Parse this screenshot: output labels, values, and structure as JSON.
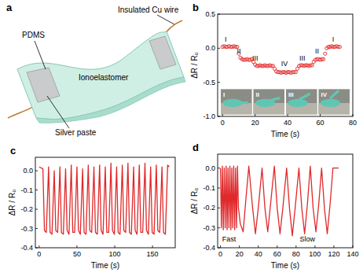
{
  "diagram": {
    "label": "a",
    "parts": {
      "pdms": "PDMS",
      "wire": "Insulated Cu wire",
      "body": "Ionoelastomer",
      "paste": "Silver paste"
    }
  },
  "chart_data": [
    {
      "type": "line",
      "title": "b",
      "x_label": "Time (s)",
      "y_label": "ΔR / R₀",
      "color": "#e0292b",
      "marker": "circle",
      "line_style": "none",
      "grid": false,
      "xlim": [
        -3,
        80
      ],
      "xticks": [
        0,
        20,
        40,
        60,
        80
      ],
      "ylim": [
        -1,
        0.5
      ],
      "yticks": [
        {
          "value": -1,
          "label": "-1.0"
        },
        -0.5,
        {
          "value": 0,
          "label": "0.0"
        },
        0.5
      ],
      "x": [
        0,
        1,
        2,
        3,
        4,
        5,
        6,
        7,
        8,
        9,
        10,
        11,
        12,
        13,
        14,
        15,
        16,
        17,
        18,
        19,
        20,
        21,
        22,
        23,
        24,
        25,
        26,
        27,
        28,
        29,
        30,
        31,
        32,
        33,
        34,
        35,
        36,
        37,
        38,
        39,
        40,
        41,
        42,
        43,
        44,
        45,
        46,
        47,
        48,
        49,
        50,
        51,
        52,
        53,
        54,
        55,
        56,
        57,
        58,
        59,
        60,
        61,
        62,
        63,
        64,
        65,
        66,
        67,
        68,
        69,
        70,
        71,
        72
      ],
      "values": [
        0.02,
        0.03,
        0.02,
        0.02,
        0.03,
        0.02,
        0.02,
        0.03,
        0.02,
        0.02,
        -0.08,
        -0.14,
        -0.16,
        -0.17,
        -0.17,
        -0.16,
        -0.17,
        -0.17,
        -0.16,
        -0.2,
        -0.24,
        -0.26,
        -0.26,
        -0.25,
        -0.26,
        -0.26,
        -0.25,
        -0.26,
        -0.26,
        -0.25,
        -0.26,
        -0.26,
        -0.3,
        -0.34,
        -0.35,
        -0.35,
        -0.36,
        -0.35,
        -0.35,
        -0.36,
        -0.35,
        -0.35,
        -0.36,
        -0.35,
        -0.35,
        -0.35,
        -0.3,
        -0.26,
        -0.25,
        -0.25,
        -0.26,
        -0.25,
        -0.25,
        -0.26,
        -0.25,
        -0.25,
        -0.2,
        -0.17,
        -0.16,
        -0.16,
        -0.17,
        -0.16,
        -0.16,
        -0.08,
        0.0,
        0.02,
        0.02,
        0.03,
        0.02,
        0.02,
        0.03,
        0.02,
        0.02
      ],
      "annotations": [
        {
          "text": "I",
          "x": 2,
          "y": 0.1
        },
        {
          "text": "II",
          "x": 10,
          "y": -0.08
        },
        {
          "text": "III",
          "x": 20,
          "y": -0.18
        },
        {
          "text": "IV",
          "x": 38,
          "y": -0.26
        },
        {
          "text": "III",
          "x": 49,
          "y": -0.18
        },
        {
          "text": "II",
          "x": 58,
          "y": -0.08
        },
        {
          "text": "I",
          "x": 68,
          "y": 0.1
        }
      ],
      "insets": [
        "I",
        "II",
        "III",
        "IV"
      ]
    },
    {
      "type": "line",
      "title": "c",
      "x_label": "Time (s)",
      "y_label": "ΔR / R₀",
      "color": "#e0292b",
      "marker": "none",
      "line_style": "solid",
      "grid": false,
      "xlim": [
        -5,
        180
      ],
      "xticks": [
        0,
        50,
        100,
        150
      ],
      "ylim": [
        -0.4,
        0.07
      ],
      "yticks": [
        -0.4,
        -0.3,
        -0.2,
        -0.1,
        {
          "value": 0,
          "label": "0.0"
        }
      ],
      "x": [
        0,
        5,
        7,
        9.5,
        12.5,
        14.5,
        17,
        20,
        22,
        24.5,
        27.5,
        29.5,
        32,
        35,
        37,
        39.5,
        42.5,
        44.5,
        47,
        50,
        52,
        54.5,
        57.5,
        59.5,
        62,
        65,
        67,
        69.5,
        72.5,
        74.5,
        77,
        80,
        82,
        84.5,
        87.5,
        89.5,
        92,
        95,
        97,
        99.5,
        102.5,
        104.5,
        107,
        110,
        112,
        114.5,
        117.5,
        119.5,
        122,
        125,
        127,
        129.5,
        132.5,
        134.5,
        137,
        140,
        142,
        144.5,
        147.5,
        149.5,
        152,
        155,
        157,
        159.5,
        162.5,
        164.5,
        167,
        170,
        172
      ],
      "values": [
        0.02,
        0.01,
        -0.31,
        -0.32,
        0.02,
        -0.32,
        -0.33,
        0.0,
        -0.31,
        -0.32,
        0.02,
        -0.32,
        -0.33,
        0.01,
        -0.31,
        -0.33,
        0.03,
        -0.32,
        -0.32,
        0.02,
        -0.31,
        -0.33,
        0.01,
        -0.32,
        -0.33,
        0.03,
        -0.31,
        -0.32,
        0.02,
        -0.32,
        -0.33,
        0.03,
        -0.31,
        -0.33,
        0.02,
        -0.32,
        -0.32,
        0.04,
        -0.31,
        -0.33,
        0.02,
        -0.32,
        -0.33,
        0.03,
        -0.31,
        -0.32,
        0.04,
        -0.32,
        -0.33,
        0.02,
        -0.31,
        -0.33,
        0.03,
        -0.32,
        -0.32,
        0.04,
        -0.31,
        -0.33,
        0.02,
        -0.32,
        -0.33,
        0.03,
        -0.31,
        -0.32,
        0.02,
        -0.32,
        -0.33,
        0.03,
        0.02
      ]
    },
    {
      "type": "line",
      "title": "d",
      "x_label": "Time (s)",
      "y_label": "ΔR / R₀",
      "color": "#e0292b",
      "marker": "none",
      "line_style": "solid",
      "grid": false,
      "xlim": [
        -3,
        140
      ],
      "xticks": [
        0,
        20,
        40,
        60,
        80,
        100,
        120,
        140
      ],
      "ylim": [
        -0.4,
        0.07
      ],
      "yticks": [
        -0.4,
        -0.3,
        -0.2,
        -0.1,
        {
          "value": 0,
          "label": "0.0"
        }
      ],
      "x": [
        0,
        1,
        2,
        3,
        4,
        5,
        6,
        7,
        8,
        9,
        10,
        11,
        12,
        13,
        14,
        15,
        16,
        17,
        18,
        19,
        21,
        24,
        27,
        30,
        34,
        37,
        40,
        44,
        47,
        50,
        53,
        57,
        60,
        63,
        66,
        70,
        73,
        76,
        79,
        83,
        86,
        89,
        92,
        95,
        98,
        101,
        104,
        107,
        110,
        113,
        116,
        119,
        122,
        125
      ],
      "values": [
        0.0,
        -0.3,
        0.01,
        -0.31,
        0.0,
        -0.3,
        0.01,
        -0.31,
        0.0,
        -0.3,
        0.01,
        -0.31,
        0.0,
        -0.3,
        0.01,
        -0.31,
        0.0,
        -0.3,
        0.01,
        -0.2,
        -0.28,
        -0.32,
        -0.15,
        0.01,
        -0.2,
        -0.33,
        -0.2,
        0.0,
        -0.2,
        -0.32,
        -0.18,
        0.01,
        -0.2,
        -0.33,
        -0.2,
        0.0,
        -0.2,
        -0.34,
        -0.2,
        0.0,
        -0.2,
        -0.33,
        -0.18,
        0.01,
        -0.2,
        -0.32,
        -0.18,
        0.0,
        -0.2,
        -0.33,
        -0.18,
        0.0,
        0.0,
        0.0
      ],
      "annotations": [
        {
          "text": "Fast",
          "x": 9,
          "y": -0.37
        },
        {
          "text": "Slow",
          "x": 92,
          "y": -0.37
        }
      ]
    }
  ]
}
